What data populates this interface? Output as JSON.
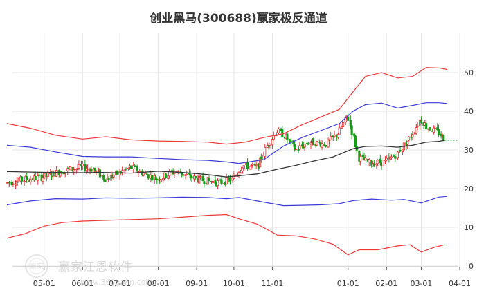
{
  "page": {
    "title": "创业黑马(300688)赢家极反通道"
  },
  "watermark": {
    "brand": "赢家江恩软件",
    "url": "www.360gann.com",
    "logo_text": "赢家"
  },
  "chart_data": {
    "type": "line",
    "title": "创业黑马(300688)赢家极反通道",
    "ylim": [
      0,
      55
    ],
    "yticks": [
      0,
      10,
      20,
      30,
      40,
      50
    ],
    "x_range": [
      "2022-04-01",
      "2023-04-01"
    ],
    "xticks": [
      {
        "label": "05-01",
        "date": "2022-05-01"
      },
      {
        "label": "06-01",
        "date": "2022-06-01"
      },
      {
        "label": "07-01",
        "date": "2022-07-01"
      },
      {
        "label": "08-01",
        "date": "2022-08-01"
      },
      {
        "label": "09-01",
        "date": "2022-09-01"
      },
      {
        "label": "10-01",
        "date": "2022-10-01"
      },
      {
        "label": "11-01",
        "date": "2022-11-01"
      },
      {
        "label": "01-01",
        "date": "2023-01-01"
      },
      {
        "label": "02-01",
        "date": "2023-02-01"
      },
      {
        "label": "03-01",
        "date": "2023-03-01"
      },
      {
        "label": "04-01",
        "date": "2023-04-01"
      }
    ],
    "grid": true,
    "last_price_line": 32.5,
    "colors": {
      "up": "#e03030",
      "down": "#1a9a1a",
      "outer_band": "#e8393a",
      "inner_band": "#3a3ad6",
      "mid_line": "#333333",
      "grid": "#e4e4e4",
      "last_price": "#1a9a1a"
    },
    "series": [
      {
        "key": "outer_upper",
        "points": [
          [
            "2022-04-01",
            36.8
          ],
          [
            "2022-04-20",
            35.6
          ],
          [
            "2022-05-10",
            33.8
          ],
          [
            "2022-06-01",
            32.8
          ],
          [
            "2022-06-20",
            33.4
          ],
          [
            "2022-07-10",
            32.6
          ],
          [
            "2022-08-01",
            32.3
          ],
          [
            "2022-08-20",
            32.2
          ],
          [
            "2022-09-10",
            32.0
          ],
          [
            "2022-09-25",
            31.5
          ],
          [
            "2022-10-10",
            32.0
          ],
          [
            "2022-10-25",
            33.2
          ],
          [
            "2022-11-10",
            34.2
          ],
          [
            "2022-11-25",
            36.5
          ],
          [
            "2022-12-10",
            38.5
          ],
          [
            "2022-12-25",
            40.5
          ],
          [
            "2023-01-05",
            45.0
          ],
          [
            "2023-01-15",
            49.0
          ],
          [
            "2023-01-28",
            50.0
          ],
          [
            "2023-02-10",
            48.6
          ],
          [
            "2023-02-22",
            49.0
          ],
          [
            "2023-03-05",
            51.3
          ],
          [
            "2023-03-15",
            51.2
          ],
          [
            "2023-03-22",
            50.8
          ]
        ]
      },
      {
        "key": "inner_upper",
        "points": [
          [
            "2022-04-01",
            31.2
          ],
          [
            "2022-04-20",
            30.7
          ],
          [
            "2022-05-10",
            29.5
          ],
          [
            "2022-06-01",
            28.3
          ],
          [
            "2022-06-20",
            28.2
          ],
          [
            "2022-07-10",
            28.2
          ],
          [
            "2022-08-01",
            27.8
          ],
          [
            "2022-08-20",
            27.5
          ],
          [
            "2022-09-10",
            27.3
          ],
          [
            "2022-09-25",
            26.9
          ],
          [
            "2022-10-05",
            26.5
          ],
          [
            "2022-10-25",
            27.5
          ],
          [
            "2022-11-10",
            31.0
          ],
          [
            "2022-11-25",
            33.2
          ],
          [
            "2022-12-10",
            35.0
          ],
          [
            "2022-12-25",
            36.8
          ],
          [
            "2023-01-05",
            40.0
          ],
          [
            "2023-01-15",
            41.7
          ],
          [
            "2023-01-28",
            42.1
          ],
          [
            "2023-02-10",
            40.8
          ],
          [
            "2023-02-22",
            41.5
          ],
          [
            "2023-03-05",
            42.2
          ],
          [
            "2023-03-15",
            42.2
          ],
          [
            "2023-03-22",
            42.0
          ]
        ]
      },
      {
        "key": "mid",
        "points": [
          [
            "2022-04-01",
            24.4
          ],
          [
            "2022-05-01",
            24.2
          ],
          [
            "2022-06-01",
            24.1
          ],
          [
            "2022-06-15",
            24.2
          ],
          [
            "2022-07-10",
            24.0
          ],
          [
            "2022-08-01",
            24.5
          ],
          [
            "2022-08-20",
            24.2
          ],
          [
            "2022-09-10",
            23.6
          ],
          [
            "2022-09-25",
            23.0
          ],
          [
            "2022-10-05",
            23.3
          ],
          [
            "2022-10-20",
            23.8
          ],
          [
            "2022-11-05",
            25.0
          ],
          [
            "2022-11-20",
            26.0
          ],
          [
            "2022-12-05",
            27.2
          ],
          [
            "2022-12-20",
            28.2
          ],
          [
            "2023-01-05",
            30.3
          ],
          [
            "2023-01-15",
            30.9
          ],
          [
            "2023-01-28",
            31.0
          ],
          [
            "2023-02-10",
            30.7
          ],
          [
            "2023-02-22",
            31.2
          ],
          [
            "2023-03-05",
            32.0
          ],
          [
            "2023-03-15",
            32.2
          ],
          [
            "2023-03-20",
            32.5
          ]
        ]
      },
      {
        "key": "inner_lower",
        "points": [
          [
            "2022-04-01",
            15.8
          ],
          [
            "2022-04-20",
            16.8
          ],
          [
            "2022-05-10",
            17.4
          ],
          [
            "2022-06-01",
            17.3
          ],
          [
            "2022-06-20",
            17.6
          ],
          [
            "2022-07-10",
            17.5
          ],
          [
            "2022-08-01",
            17.6
          ],
          [
            "2022-08-20",
            17.8
          ],
          [
            "2022-09-10",
            17.7
          ],
          [
            "2022-09-25",
            17.4
          ],
          [
            "2022-10-05",
            17.7
          ],
          [
            "2022-10-25",
            16.5
          ],
          [
            "2022-11-10",
            15.6
          ],
          [
            "2022-11-25",
            15.7
          ],
          [
            "2022-12-10",
            15.8
          ],
          [
            "2022-12-25",
            16.1
          ],
          [
            "2023-01-05",
            16.9
          ],
          [
            "2023-01-20",
            17.3
          ],
          [
            "2023-02-05",
            17.0
          ],
          [
            "2023-02-15",
            17.2
          ],
          [
            "2023-03-01",
            16.3
          ],
          [
            "2023-03-15",
            17.8
          ],
          [
            "2023-03-22",
            18.0
          ]
        ]
      },
      {
        "key": "outer_lower",
        "points": [
          [
            "2022-04-01",
            7.2
          ],
          [
            "2022-04-15",
            8.3
          ],
          [
            "2022-05-01",
            10.3
          ],
          [
            "2022-05-15",
            11.2
          ],
          [
            "2022-06-01",
            11.6
          ],
          [
            "2022-06-20",
            11.8
          ],
          [
            "2022-07-10",
            12.0
          ],
          [
            "2022-08-01",
            12.2
          ],
          [
            "2022-08-20",
            12.6
          ],
          [
            "2022-09-10",
            13.1
          ],
          [
            "2022-09-25",
            13.3
          ],
          [
            "2022-10-05",
            12.2
          ],
          [
            "2022-10-20",
            10.8
          ],
          [
            "2022-11-05",
            8.0
          ],
          [
            "2022-11-20",
            7.8
          ],
          [
            "2022-12-05",
            7.0
          ],
          [
            "2022-12-20",
            5.6
          ],
          [
            "2023-01-01",
            2.9
          ],
          [
            "2023-01-10",
            4.2
          ],
          [
            "2023-01-25",
            4.2
          ],
          [
            "2023-02-10",
            5.2
          ],
          [
            "2023-02-20",
            5.5
          ],
          [
            "2023-03-01",
            3.6
          ],
          [
            "2023-03-12",
            4.9
          ],
          [
            "2023-03-20",
            5.5
          ]
        ]
      }
    ],
    "price_path": [
      [
        "2022-04-01",
        21.5
      ],
      [
        "2022-04-15",
        22.3
      ],
      [
        "2022-05-01",
        23.0
      ],
      [
        "2022-05-15",
        24.5
      ],
      [
        "2022-06-01",
        25.5
      ],
      [
        "2022-06-10",
        25.0
      ],
      [
        "2022-06-20",
        22.5
      ],
      [
        "2022-07-01",
        24.0
      ],
      [
        "2022-07-10",
        25.5
      ],
      [
        "2022-07-20",
        24.0
      ],
      [
        "2022-08-01",
        22.5
      ],
      [
        "2022-08-15",
        24.5
      ],
      [
        "2022-09-01",
        22.5
      ],
      [
        "2022-09-20",
        21.5
      ],
      [
        "2022-10-01",
        22.5
      ],
      [
        "2022-10-08",
        26.0
      ],
      [
        "2022-10-20",
        25.5
      ],
      [
        "2022-10-28",
        31.0
      ],
      [
        "2022-11-05",
        35.0
      ],
      [
        "2022-11-12",
        33.5
      ],
      [
        "2022-11-20",
        30.0
      ],
      [
        "2022-12-01",
        32.0
      ],
      [
        "2022-12-15",
        31.5
      ],
      [
        "2022-12-25",
        34.5
      ],
      [
        "2023-01-01",
        39.0
      ],
      [
        "2023-01-06",
        33.0
      ],
      [
        "2023-01-10",
        28.0
      ],
      [
        "2023-01-20",
        26.5
      ],
      [
        "2023-02-01",
        27.0
      ],
      [
        "2023-02-10",
        29.0
      ],
      [
        "2023-02-20",
        33.0
      ],
      [
        "2023-03-01",
        38.0
      ],
      [
        "2023-03-06",
        36.0
      ],
      [
        "2023-03-15",
        34.5
      ],
      [
        "2023-03-20",
        33.0
      ]
    ]
  }
}
